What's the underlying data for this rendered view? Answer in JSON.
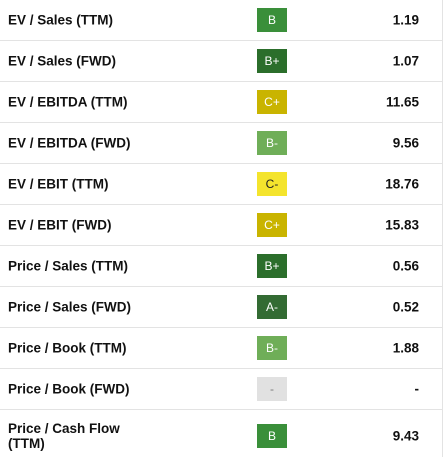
{
  "rows": [
    {
      "label": "EV / Sales (TTM)",
      "grade": "B",
      "grade_bg": "#3a8f3a",
      "grade_text": "#ffffff",
      "value": "1.19"
    },
    {
      "label": "EV / Sales (FWD)",
      "grade": "B+",
      "grade_bg": "#2b6e2b",
      "grade_text": "#ffffff",
      "value": "1.07"
    },
    {
      "label": "EV / EBITDA (TTM)",
      "grade": "C+",
      "grade_bg": "#c9b400",
      "grade_text": "#ffffff",
      "value": "11.65"
    },
    {
      "label": "EV / EBITDA (FWD)",
      "grade": "B-",
      "grade_bg": "#6fae58",
      "grade_text": "#ffffff",
      "value": "9.56"
    },
    {
      "label": "EV / EBIT (TTM)",
      "grade": "C-",
      "grade_bg": "#f4e42d",
      "grade_text": "#222222",
      "value": "18.76"
    },
    {
      "label": "EV / EBIT (FWD)",
      "grade": "C+",
      "grade_bg": "#c9b400",
      "grade_text": "#ffffff",
      "value": "15.83"
    },
    {
      "label": "Price / Sales (TTM)",
      "grade": "B+",
      "grade_bg": "#2b6e2b",
      "grade_text": "#ffffff",
      "value": "0.56"
    },
    {
      "label": "Price / Sales (FWD)",
      "grade": "A-",
      "grade_bg": "#336b33",
      "grade_text": "#ffffff",
      "value": "0.52"
    },
    {
      "label": "Price / Book (TTM)",
      "grade": "B-",
      "grade_bg": "#6fae58",
      "grade_text": "#ffffff",
      "value": "1.88"
    },
    {
      "label": "Price / Book (FWD)",
      "grade": "-",
      "grade_bg": "#e1e1e1",
      "grade_text": "#7a7a7a",
      "value": "-"
    },
    {
      "label": "Price / Cash Flow (TTM)",
      "grade": "B",
      "grade_bg": "#3a8f3a",
      "grade_text": "#ffffff",
      "value": "9.43"
    }
  ]
}
